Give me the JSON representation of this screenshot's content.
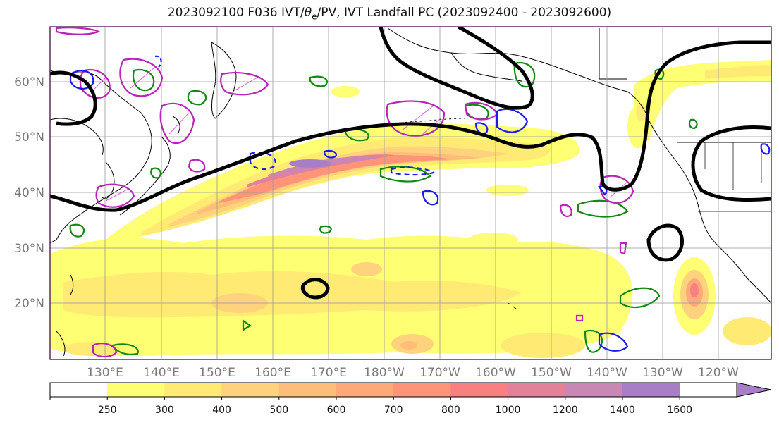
{
  "title_main": "2023092100 F036 IVT/",
  "title_theta": "θ",
  "title_sub": "e",
  "title_rest": "/PV, IVT Landfall PC (2023092400 - 2023092600)",
  "map": {
    "lat_labels": [
      "60°N",
      "50°N",
      "40°N",
      "30°N",
      "20°N"
    ],
    "lon_labels": [
      "130°E",
      "140°E",
      "150°E",
      "160°E",
      "170°E",
      "180°W",
      "170°W",
      "160°W",
      "150°W",
      "140°W",
      "130°W",
      "120°W"
    ]
  },
  "colorbar": {
    "ticks": [
      "250",
      "300",
      "400",
      "500",
      "600",
      "700",
      "800",
      "1000",
      "1200",
      "1400",
      "1600"
    ],
    "colors": [
      "#ffffff",
      "#ffff73",
      "#ffea73",
      "#ffd27d",
      "#ffbd7a",
      "#ffa878",
      "#ff9478",
      "#f88080",
      "#e3809a",
      "#c887b4",
      "#a87fc7"
    ]
  },
  "colors": {
    "theta_e": "#000000",
    "pv_magenta": "#bb22bb",
    "vort_green": "#118811",
    "blue": "#1a1aee"
  }
}
